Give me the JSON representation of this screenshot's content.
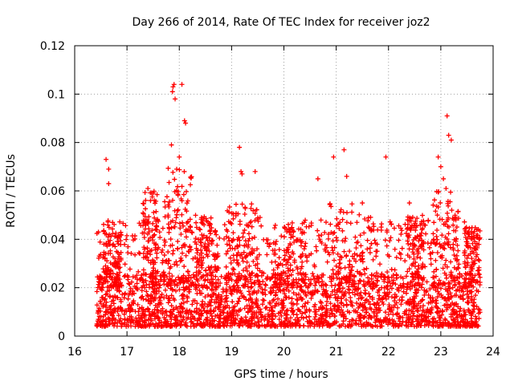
{
  "chart_data": {
    "type": "scatter",
    "title": "Day 266 of 2014, Rate Of TEC Index for receiver joz2",
    "xlabel": "GPS time / hours",
    "ylabel": "ROTI / TECUs",
    "xlim": [
      16,
      24
    ],
    "ylim": [
      0,
      0.12
    ],
    "grid": true,
    "x_ticks": [
      "16",
      "17",
      "18",
      "19",
      "20",
      "21",
      "22",
      "23",
      "24"
    ],
    "y_ticks": [
      "0",
      "0.02",
      "0.04",
      "0.06",
      "0.08",
      "0.1",
      "0.12"
    ],
    "marker": "+",
    "series_color": "#ff0000",
    "series": [
      {
        "name": "ROTI",
        "note": "dense scatter of samples from about 16.4 h to 23.75 h; baseline 0.005-0.02, bursts up to ~0.104",
        "x": [
          16.6,
          16.65,
          16.65,
          17.4,
          17.45,
          17.85,
          17.87,
          17.88,
          17.9,
          17.92,
          18.05,
          18.1,
          18.12,
          17.95,
          18.0,
          19.15,
          19.2,
          19.18,
          19.45,
          20.65,
          20.95,
          21.15,
          21.2,
          21.5,
          21.95,
          22.4,
          22.95,
          23.0,
          23.05,
          23.12,
          23.15,
          23.2,
          23.1
        ],
        "values": [
          0.073,
          0.069,
          0.063,
          0.061,
          0.056,
          0.079,
          0.101,
          0.103,
          0.104,
          0.098,
          0.104,
          0.089,
          0.088,
          0.069,
          0.074,
          0.078,
          0.067,
          0.068,
          0.068,
          0.065,
          0.074,
          0.077,
          0.066,
          0.055,
          0.074,
          0.055,
          0.074,
          0.07,
          0.065,
          0.091,
          0.083,
          0.081,
          0.061
        ]
      }
    ]
  }
}
